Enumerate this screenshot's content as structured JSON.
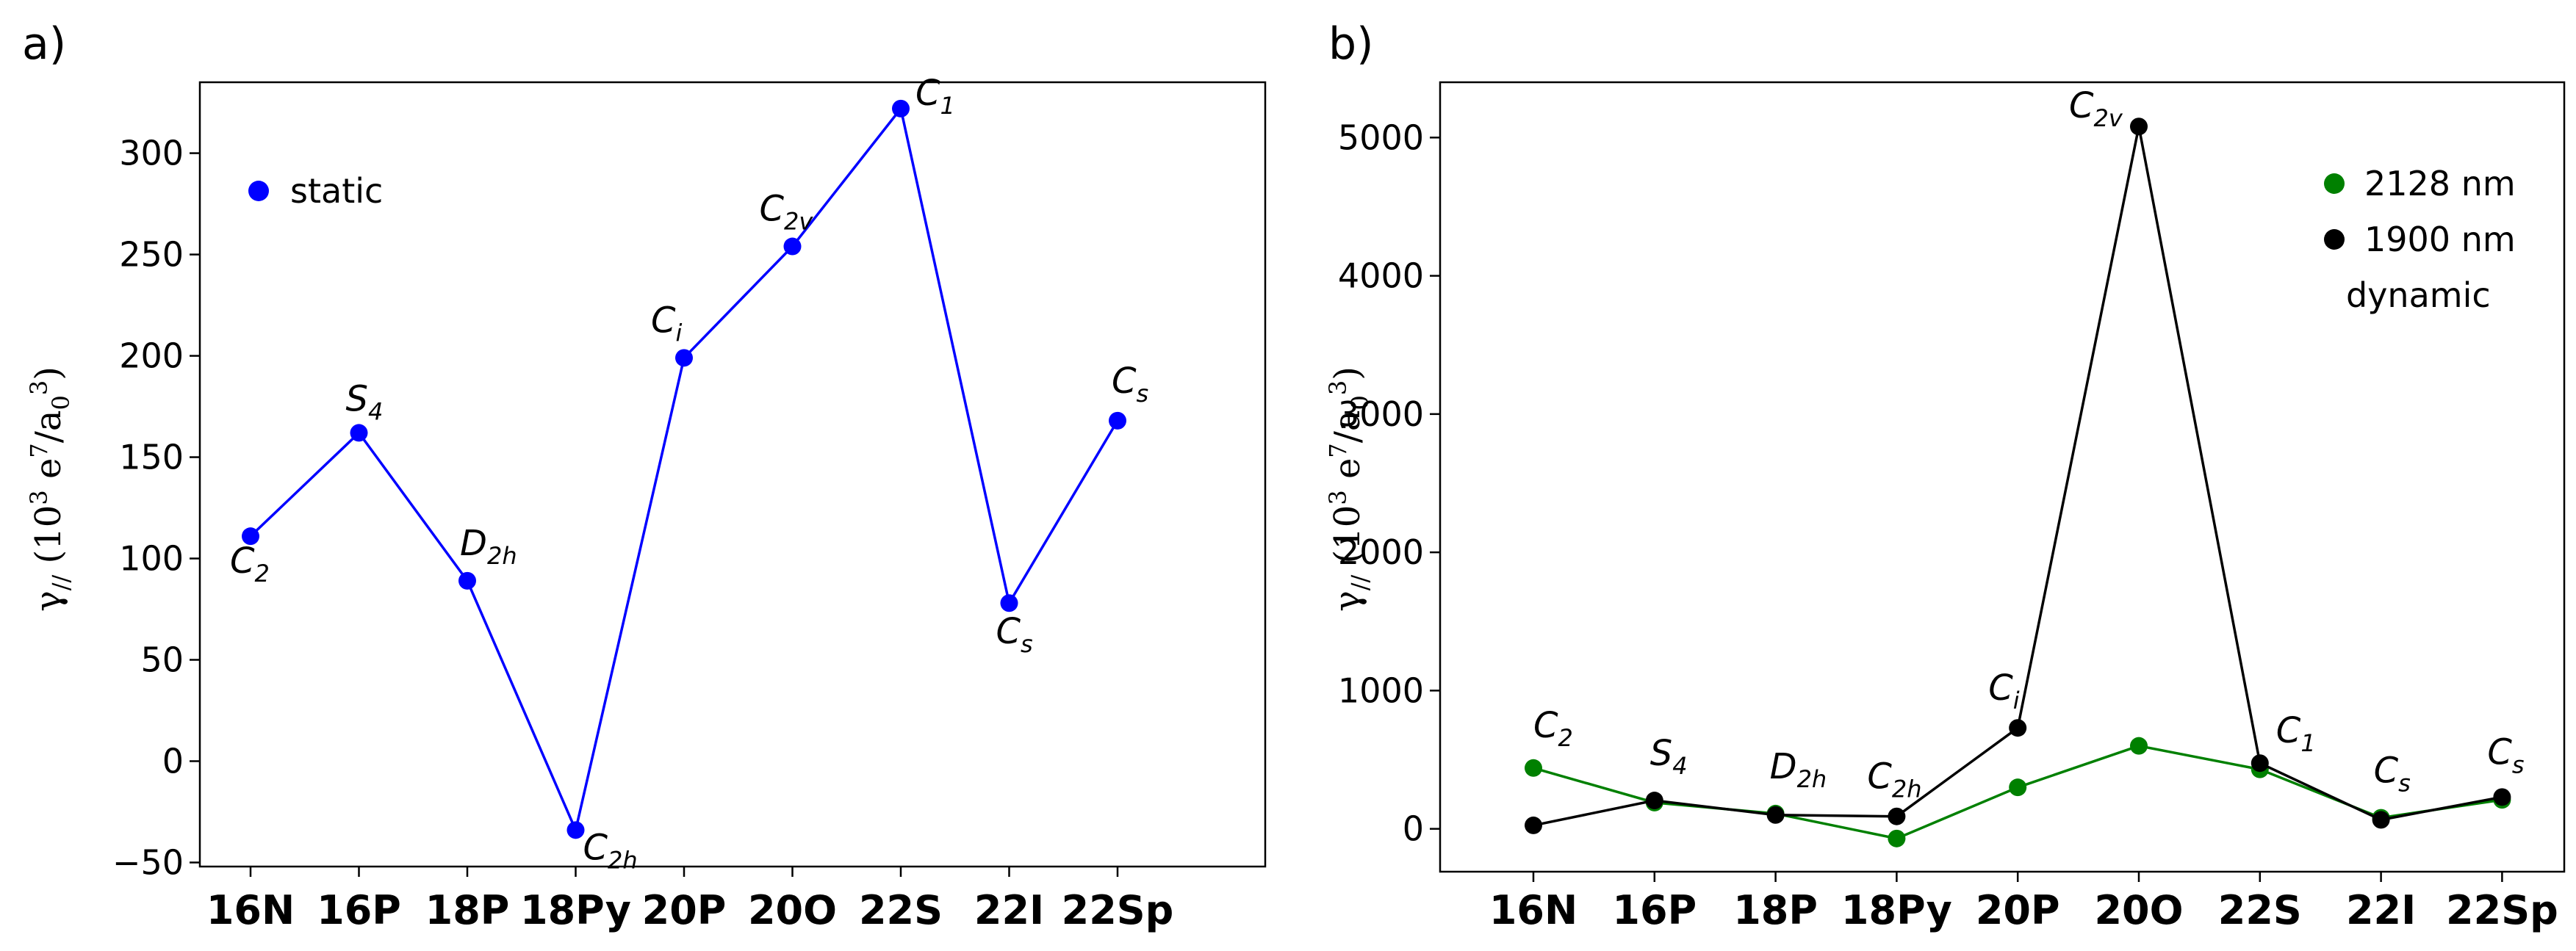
{
  "chart_data": [
    {
      "panel": "a)",
      "type": "line",
      "categories": [
        "16N",
        "16P",
        "18P",
        "18Py",
        "20P",
        "20O",
        "22S",
        "22I",
        "22Sp"
      ],
      "series": [
        {
          "name": "static",
          "color": "#0000ff",
          "values": [
            111,
            162,
            89,
            -34,
            199,
            254,
            322,
            78,
            168
          ]
        }
      ],
      "point_labels": [
        {
          "base": "C",
          "sub": "2"
        },
        {
          "base": "S",
          "sub": "4"
        },
        {
          "base": "D",
          "sub": "2h"
        },
        {
          "base": "C",
          "sub": "2h"
        },
        {
          "base": "C",
          "sub": "i"
        },
        {
          "base": "C",
          "sub": "2v"
        },
        {
          "base": "C",
          "sub": "1"
        },
        {
          "base": "C",
          "sub": "s"
        },
        {
          "base": "C",
          "sub": "s"
        }
      ],
      "ylabel": {
        "gamma": "γ",
        "sub": "//",
        "open": " (10",
        "exp1": "3",
        "mid": " e",
        "exp2": "7",
        "unit": "/a",
        "sub2": "0",
        "exp3": "3",
        "close": ")"
      },
      "ylim": [
        -52,
        335
      ],
      "yticks": [
        -50,
        0,
        50,
        100,
        150,
        200,
        250,
        300
      ],
      "legend": {
        "position": "top-left",
        "entries": [
          "static"
        ]
      }
    },
    {
      "panel": "b)",
      "type": "line",
      "categories": [
        "16N",
        "16P",
        "18P",
        "18Py",
        "20P",
        "20O",
        "22S",
        "22I",
        "22Sp"
      ],
      "series": [
        {
          "name": "2128 nm",
          "color": "#008000",
          "values": [
            440,
            190,
            110,
            -70,
            300,
            600,
            430,
            80,
            210
          ]
        },
        {
          "name": "1900 nm",
          "color": "#000000",
          "values": [
            25,
            205,
            100,
            90,
            730,
            5080,
            475,
            65,
            230
          ]
        }
      ],
      "point_labels": [
        {
          "base": "C",
          "sub": "2"
        },
        {
          "base": "S",
          "sub": "4"
        },
        {
          "base": "D",
          "sub": "2h"
        },
        {
          "base": "C",
          "sub": "2h"
        },
        {
          "base": "C",
          "sub": "i"
        },
        {
          "base": "C",
          "sub": "2v"
        },
        {
          "base": "C",
          "sub": "1"
        },
        {
          "base": "C",
          "sub": "s"
        },
        {
          "base": "C",
          "sub": "s"
        }
      ],
      "ylabel": {
        "gamma": "γ",
        "sub": "//",
        "open": " (10",
        "exp1": "3",
        "mid": " e",
        "exp2": "7",
        "unit": "/a",
        "sub2": "0",
        "exp3": "3",
        "close": ")"
      },
      "ylim": [
        -310,
        5400
      ],
      "yticks": [
        0,
        1000,
        2000,
        3000,
        4000,
        5000
      ],
      "legend": {
        "position": "top-right",
        "entries": [
          "2128 nm",
          "1900 nm"
        ],
        "title": "dynamic"
      }
    }
  ]
}
